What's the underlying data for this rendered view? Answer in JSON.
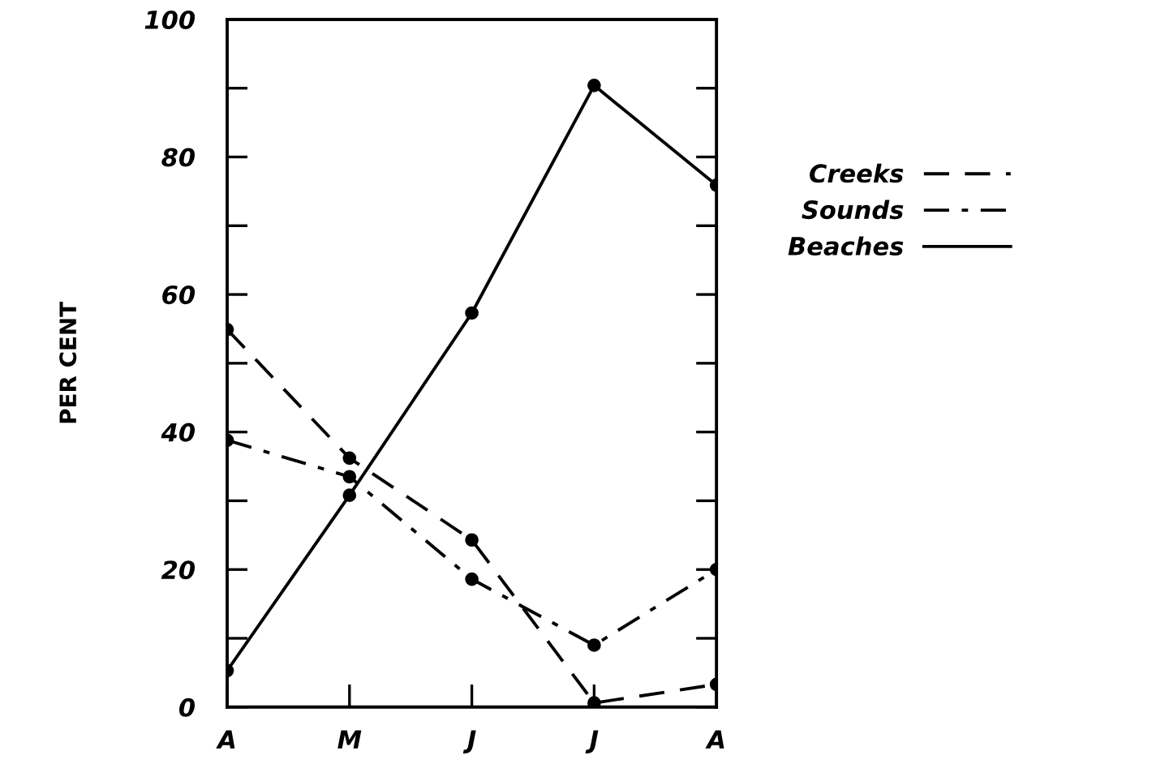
{
  "chart_data": {
    "type": "line",
    "ylabel": "PER CENT",
    "categories": [
      "A",
      "M",
      "J",
      "J",
      "A"
    ],
    "series": [
      {
        "name": "Creeks",
        "color": "#000000",
        "line_style": "dashed",
        "values": [
          54.9,
          36.2,
          24.3,
          0.6,
          3.3
        ]
      },
      {
        "name": "Sounds",
        "color": "#000000",
        "line_style": "dashdot",
        "values": [
          38.8,
          33.5,
          18.6,
          9.0,
          20
        ]
      },
      {
        "name": "Beaches",
        "color": "#000000",
        "line_style": "solid",
        "values": [
          5.3,
          30.8,
          57.3,
          90.4,
          75.9
        ]
      }
    ],
    "ylim": [
      0,
      100
    ],
    "yticks": [
      0,
      {
        "value": 10,
        "label": null
      },
      20,
      {
        "value": 30,
        "label": null
      },
      40,
      {
        "value": 50,
        "label": null
      },
      60,
      {
        "value": 70,
        "label": null
      },
      80,
      {
        "value": 90,
        "label": null
      },
      100
    ],
    "marker": "circle",
    "grid": false,
    "legend": "right"
  }
}
